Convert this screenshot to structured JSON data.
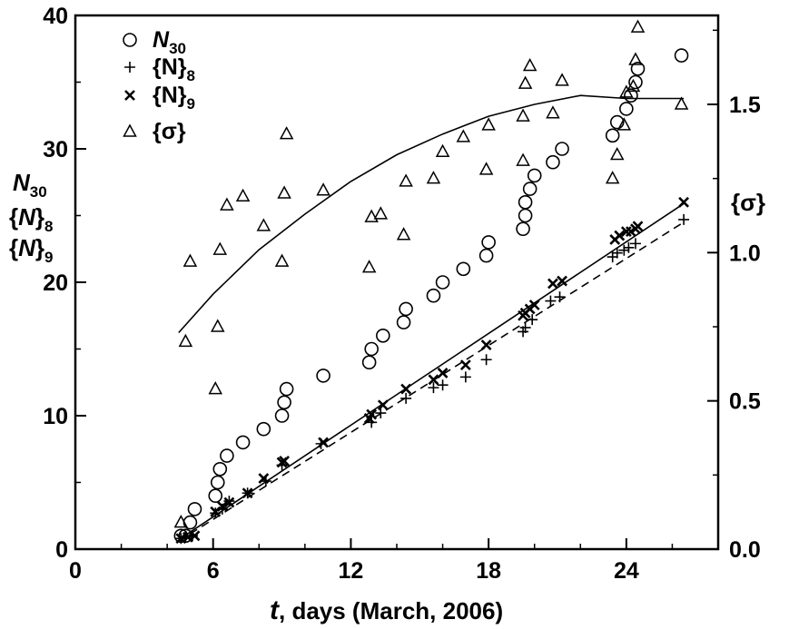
{
  "chart_data": {
    "type": "scatter",
    "xlabel_var": "t",
    "xlabel_rest": ", days (March, 2006)",
    "ylabel_left": [
      "N30",
      "{N}8",
      "{N}9"
    ],
    "ylabel_right": "{σ}",
    "xlim": [
      0,
      28
    ],
    "ylim_left": [
      0,
      40
    ],
    "ylim_right": [
      0,
      1.8
    ],
    "x_ticks": [
      0,
      6,
      12,
      18,
      24
    ],
    "x_tick_labels": [
      "0",
      "6",
      "12",
      "18",
      "24"
    ],
    "y_left_ticks": [
      0,
      10,
      20,
      30,
      40
    ],
    "y_left_tick_labels": [
      "0",
      "10",
      "20",
      "30",
      "40"
    ],
    "y_right_ticks": [
      0,
      0.5,
      1.0,
      1.5
    ],
    "y_right_tick_labels": [
      "0.0",
      "0.5",
      "1.0",
      "1.5"
    ],
    "grid": false,
    "legend_position": "top-left",
    "series": [
      {
        "name": "N30",
        "label_main": "N",
        "label_sub": "30",
        "marker": "circle",
        "axis": "left",
        "points": [
          [
            4.6,
            1
          ],
          [
            4.8,
            1
          ],
          [
            5.0,
            2
          ],
          [
            5.2,
            3
          ],
          [
            6.1,
            4
          ],
          [
            6.2,
            5
          ],
          [
            6.3,
            6
          ],
          [
            6.6,
            7
          ],
          [
            7.3,
            8
          ],
          [
            8.2,
            9
          ],
          [
            9.0,
            10
          ],
          [
            9.1,
            11
          ],
          [
            9.2,
            12
          ],
          [
            10.8,
            13
          ],
          [
            12.8,
            14
          ],
          [
            12.9,
            15
          ],
          [
            13.4,
            16
          ],
          [
            14.3,
            17
          ],
          [
            14.4,
            18
          ],
          [
            15.6,
            19
          ],
          [
            16.0,
            20
          ],
          [
            16.9,
            21
          ],
          [
            17.9,
            22
          ],
          [
            18.0,
            23
          ],
          [
            19.5,
            24
          ],
          [
            19.6,
            25
          ],
          [
            19.6,
            26
          ],
          [
            19.8,
            27
          ],
          [
            20.0,
            28
          ],
          [
            20.8,
            29
          ],
          [
            21.2,
            30
          ],
          [
            23.4,
            31
          ],
          [
            23.6,
            32
          ],
          [
            24.0,
            33
          ],
          [
            24.2,
            34
          ],
          [
            24.4,
            35
          ],
          [
            24.5,
            36
          ],
          [
            26.4,
            37
          ]
        ]
      },
      {
        "name": "{N}8",
        "label_main": "{N}",
        "label_sub": "8",
        "marker": "plus",
        "axis": "left",
        "points": [
          [
            4.6,
            0.8
          ],
          [
            4.8,
            0.9
          ],
          [
            5.1,
            1.0
          ],
          [
            6.1,
            2.7
          ],
          [
            6.4,
            3.0
          ],
          [
            6.7,
            3.6
          ],
          [
            7.5,
            4.2
          ],
          [
            8.3,
            5.1
          ],
          [
            9.0,
            6.3
          ],
          [
            10.7,
            7.9
          ],
          [
            12.9,
            9.5
          ],
          [
            13.3,
            10.2
          ],
          [
            14.4,
            11.3
          ],
          [
            15.6,
            12.1
          ],
          [
            16.0,
            12.3
          ],
          [
            17.0,
            12.9
          ],
          [
            17.9,
            14.2
          ],
          [
            19.5,
            16.3
          ],
          [
            19.6,
            16.6
          ],
          [
            19.9,
            17.2
          ],
          [
            20.7,
            18.6
          ],
          [
            21.1,
            18.9
          ],
          [
            23.4,
            21.9
          ],
          [
            23.6,
            22.2
          ],
          [
            23.9,
            22.4
          ],
          [
            24.1,
            22.6
          ],
          [
            24.4,
            22.9
          ],
          [
            26.5,
            24.7
          ]
        ]
      },
      {
        "name": "{N}9",
        "label_main": "{N}",
        "label_sub": "9",
        "marker": "x",
        "axis": "left",
        "points": [
          [
            4.6,
            0.8
          ],
          [
            4.9,
            0.9
          ],
          [
            5.2,
            1.0
          ],
          [
            6.1,
            2.8
          ],
          [
            6.4,
            3.2
          ],
          [
            6.7,
            3.5
          ],
          [
            7.5,
            4.2
          ],
          [
            8.2,
            5.3
          ],
          [
            9.0,
            6.5
          ],
          [
            9.1,
            6.6
          ],
          [
            10.8,
            8.0
          ],
          [
            12.8,
            9.8
          ],
          [
            12.9,
            10.1
          ],
          [
            13.4,
            10.8
          ],
          [
            14.4,
            12.0
          ],
          [
            15.6,
            12.7
          ],
          [
            16.0,
            13.2
          ],
          [
            17.0,
            13.8
          ],
          [
            17.9,
            15.3
          ],
          [
            19.5,
            17.5
          ],
          [
            19.6,
            17.7
          ],
          [
            19.8,
            18.0
          ],
          [
            20.0,
            18.3
          ],
          [
            20.8,
            19.9
          ],
          [
            21.2,
            20.1
          ],
          [
            23.5,
            23.2
          ],
          [
            23.7,
            23.5
          ],
          [
            24.0,
            23.8
          ],
          [
            24.2,
            23.8
          ],
          [
            24.4,
            24.0
          ],
          [
            24.5,
            24.2
          ],
          [
            26.5,
            26.0
          ]
        ]
      },
      {
        "name": "{σ}",
        "label_main": "{σ}",
        "label_sub": "",
        "marker": "triangle",
        "axis": "right",
        "points": [
          [
            4.6,
            0.09
          ],
          [
            4.8,
            0.7
          ],
          [
            5.0,
            0.97
          ],
          [
            6.1,
            0.54
          ],
          [
            6.2,
            0.75
          ],
          [
            6.3,
            1.01
          ],
          [
            6.6,
            1.16
          ],
          [
            7.3,
            1.19
          ],
          [
            8.2,
            1.09
          ],
          [
            9.0,
            0.97
          ],
          [
            9.1,
            1.2
          ],
          [
            9.2,
            1.4
          ],
          [
            10.8,
            1.21
          ],
          [
            12.8,
            0.95
          ],
          [
            12.9,
            1.12
          ],
          [
            13.3,
            1.13
          ],
          [
            14.3,
            1.06
          ],
          [
            14.4,
            1.24
          ],
          [
            15.6,
            1.25
          ],
          [
            16.0,
            1.34
          ],
          [
            16.9,
            1.39
          ],
          [
            17.9,
            1.28
          ],
          [
            18.0,
            1.43
          ],
          [
            19.5,
            1.31
          ],
          [
            19.5,
            1.46
          ],
          [
            19.6,
            1.57
          ],
          [
            19.8,
            1.63
          ],
          [
            20.8,
            1.47
          ],
          [
            21.2,
            1.58
          ],
          [
            23.4,
            1.25
          ],
          [
            23.6,
            1.33
          ],
          [
            23.9,
            1.43
          ],
          [
            24.0,
            1.54
          ],
          [
            24.3,
            1.56
          ],
          [
            24.4,
            1.65
          ],
          [
            24.5,
            1.76
          ],
          [
            26.4,
            1.5
          ]
        ]
      }
    ],
    "fit_lines": [
      {
        "name": "{σ} fit",
        "style": "solid",
        "axis": "right",
        "points": [
          [
            4.5,
            0.73
          ],
          [
            6,
            0.86
          ],
          [
            8,
            1.01
          ],
          [
            10,
            1.13
          ],
          [
            12,
            1.24
          ],
          [
            14,
            1.33
          ],
          [
            16,
            1.4
          ],
          [
            18,
            1.46
          ],
          [
            20,
            1.5
          ],
          [
            22,
            1.53
          ],
          [
            24,
            1.52
          ],
          [
            26.5,
            1.52
          ]
        ]
      },
      {
        "name": "{N}9 fit",
        "style": "solid",
        "axis": "left",
        "points": [
          [
            4.5,
            0.7
          ],
          [
            26.5,
            25.9
          ]
        ]
      },
      {
        "name": "{N}8 fit",
        "style": "dashed",
        "axis": "left",
        "points": [
          [
            4.5,
            0.6
          ],
          [
            26.5,
            24.5
          ]
        ]
      }
    ]
  }
}
